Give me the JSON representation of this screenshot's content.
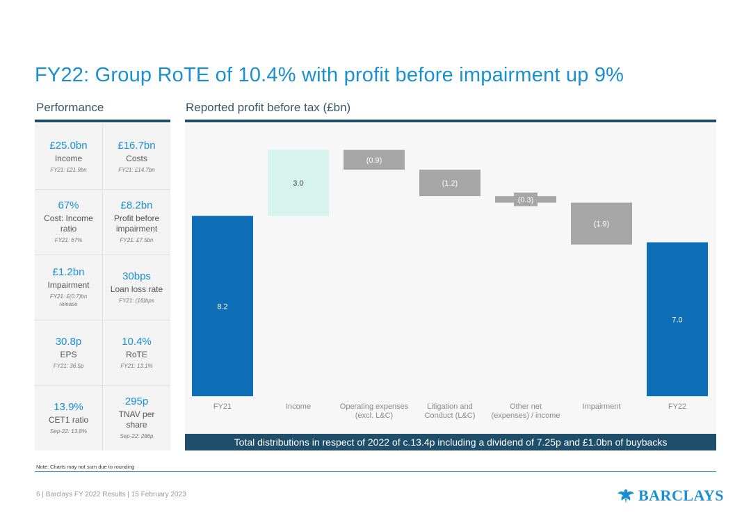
{
  "title": "FY22: Group RoTE of 10.4% with profit before impairment up 9%",
  "performance": {
    "heading": "Performance",
    "cells": [
      {
        "value": "£25.0bn",
        "label": "Income",
        "label2": "",
        "compare": "FY21: £21.9bn",
        "compare2": ""
      },
      {
        "value": "£16.7bn",
        "label": "Costs",
        "label2": "",
        "compare": "FY21: £14.7bn",
        "compare2": ""
      },
      {
        "value": "67%",
        "label": "Cost: Income",
        "label2": "ratio",
        "compare": "FY21: 67%",
        "compare2": ""
      },
      {
        "value": "£8.2bn",
        "label": "Profit before",
        "label2": "impairment",
        "compare": "FY21: £7.5bn",
        "compare2": ""
      },
      {
        "value": "£1.2bn",
        "label": "Impairment",
        "label2": "",
        "compare": "FY21: £(0.7)bn",
        "compare2": "release"
      },
      {
        "value": "30bps",
        "label": "Loan loss rate",
        "label2": "",
        "compare": "FY21: (18)bps",
        "compare2": ""
      },
      {
        "value": "30.8p",
        "label": "EPS",
        "label2": "",
        "compare": "FY21: 36.5p",
        "compare2": ""
      },
      {
        "value": "10.4%",
        "label": "RoTE",
        "label2": "",
        "compare": "FY21: 13.1%",
        "compare2": ""
      },
      {
        "value": "13.9%",
        "label": "CET1 ratio",
        "label2": "",
        "compare": "Sep-22: 13.8%",
        "compare2": ""
      },
      {
        "value": "295p",
        "label": "TNAV per",
        "label2": "share",
        "compare": "Sep-22: 286p",
        "compare2": ""
      }
    ]
  },
  "chart_data": {
    "type": "waterfall",
    "title": "Reported profit before tax (£bn)",
    "ylim": [
      0,
      11.6
    ],
    "categories": [
      {
        "line1": "FY21",
        "line2": ""
      },
      {
        "line1": "Income",
        "line2": ""
      },
      {
        "line1": "Operating expenses",
        "line2": "(excl. L&C)"
      },
      {
        "line1": "Litigation and",
        "line2": "Conduct (L&C)"
      },
      {
        "line1": "Other net",
        "line2": "(expenses) / income"
      },
      {
        "line1": "Impairment",
        "line2": ""
      },
      {
        "line1": "FY22",
        "line2": ""
      }
    ],
    "values": [
      8.2,
      3.0,
      -0.9,
      -1.2,
      -0.3,
      -1.9,
      7.0
    ],
    "kinds": [
      "total",
      "delta",
      "delta",
      "delta",
      "delta",
      "delta",
      "total"
    ],
    "labels": [
      "8.2",
      "3.0",
      "(0.9)",
      "(1.2)",
      "(0.3)",
      "(1.9)",
      "7.0"
    ],
    "colors": {
      "total": "#0d6eb5",
      "increase": "#d6f3ec",
      "decrease": "#a6a6a6"
    }
  },
  "banner": "Total distributions in respect of 2022 of c.13.4p including a dividend of 7.25p and £1.0bn of buybacks",
  "note": "Note: Charts may not sum due to rounding",
  "footer": "6 | Barclays FY 2022 Results | 15 February 2023",
  "logo": {
    "text": "BARCLAYS",
    "icon": "eagle-icon",
    "color": "#1a8fd1"
  }
}
